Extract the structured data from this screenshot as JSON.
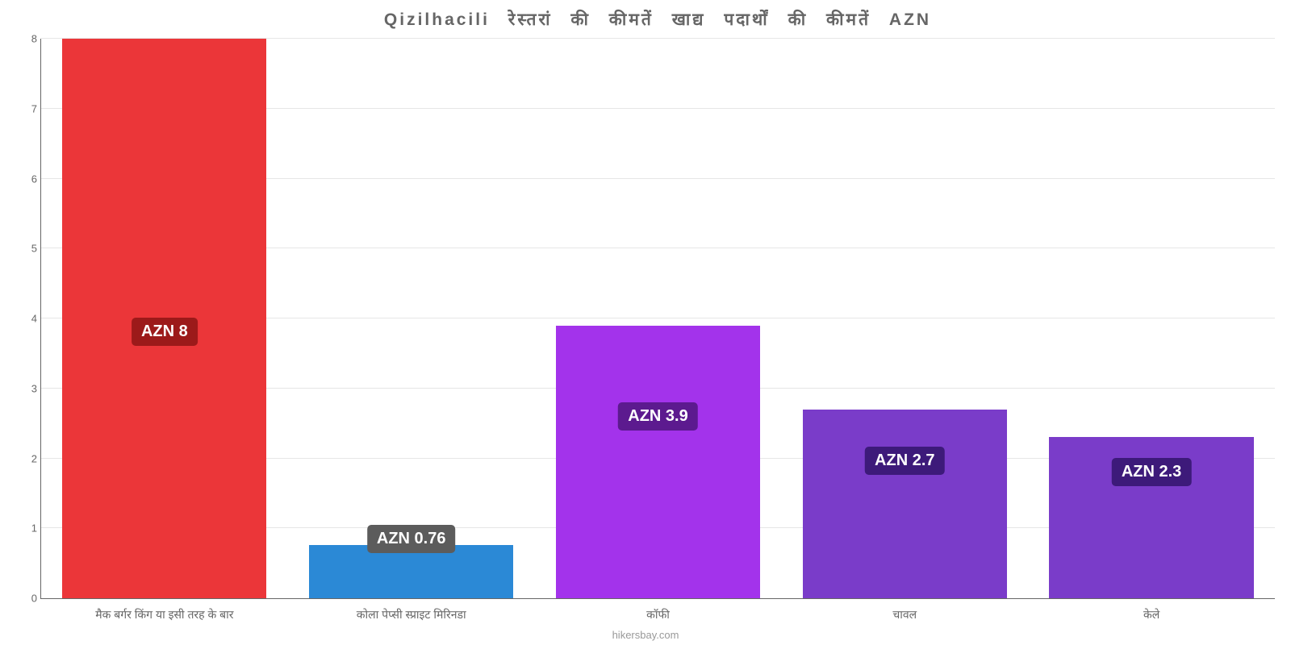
{
  "chart": {
    "type": "bar",
    "title": "Qizilhacili रेस्तरां की कीमतें खाद्य पदार्थों की कीमतें AZN",
    "title_fontsize": 21,
    "title_color": "#666666",
    "background_color": "#ffffff",
    "grid_color": "#e6e6e6",
    "axis_color": "#666666",
    "label_color": "#666666",
    "label_fontsize": 14,
    "ylim": [
      0,
      8
    ],
    "ytick_step": 1,
    "yticks": [
      0,
      1,
      2,
      3,
      4,
      5,
      6,
      7,
      8
    ],
    "bar_width": 0.92,
    "attribution": "hikersbay.com",
    "attribution_color": "#999999",
    "categories": [
      "मैक बर्गर किंग या इसी तरह के बार",
      "कोला पेप्सी स्प्राइट मिरिनडा",
      "कॉफी",
      "चावल",
      "केले"
    ],
    "values": [
      8,
      0.76,
      3.9,
      2.7,
      2.3
    ],
    "value_labels": [
      "AZN 8",
      "AZN 0.76",
      "AZN 3.9",
      "AZN 2.7",
      "AZN 2.3"
    ],
    "bar_colors": [
      "#eb3639",
      "#2b89d6",
      "#a333eb",
      "#7a3cc9",
      "#7a3cc9"
    ],
    "label_bg_colors": [
      "#9c1a1a",
      "#5c5c5c",
      "#5c1a8f",
      "#3d1a7a",
      "#3d1a7a"
    ],
    "label_fontsize_value": 20,
    "label_text_color": "#ffffff",
    "label_positions_pct": [
      45,
      8,
      30,
      22,
      20
    ]
  }
}
